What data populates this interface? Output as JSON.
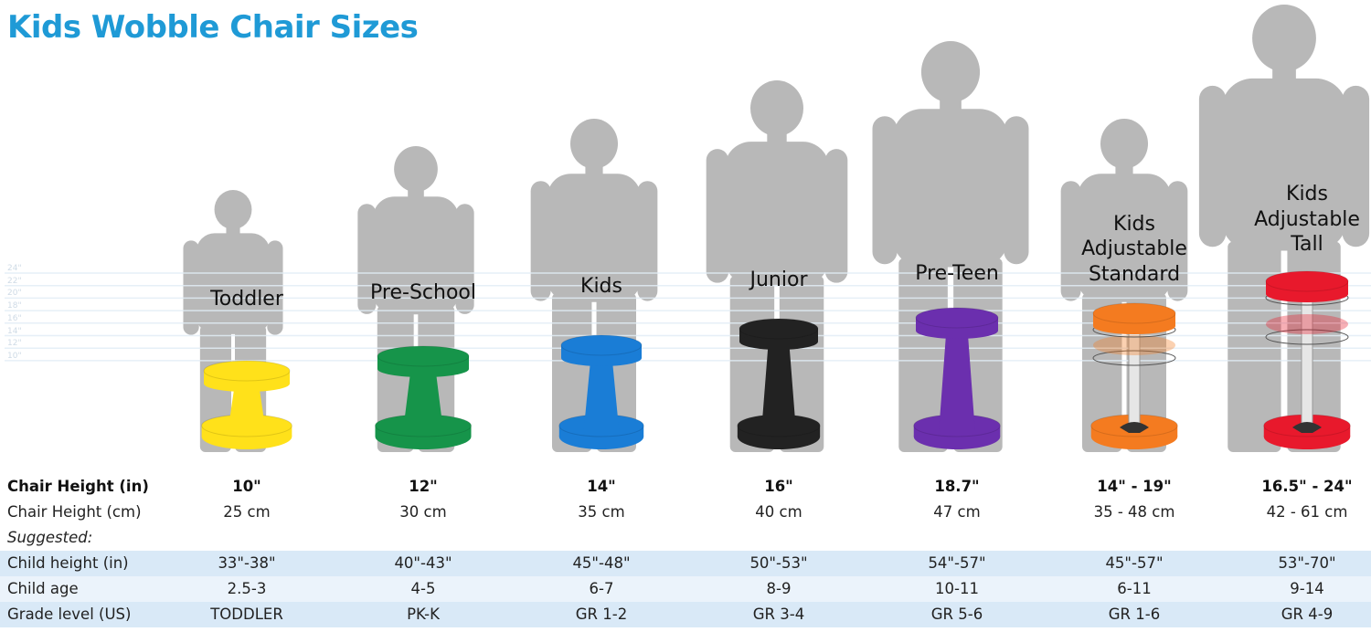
{
  "title": "Kids Wobble Chair Sizes",
  "guide_ticks": [
    "24\"",
    "22\"",
    "20\"",
    "18\"",
    "16\"",
    "14\"",
    "12\"",
    "10\""
  ],
  "models": [
    {
      "name_lines": [
        "Toddler"
      ],
      "color": "#ffe11a"
    },
    {
      "name_lines": [
        "Pre-School"
      ],
      "color": "#16944a"
    },
    {
      "name_lines": [
        "Kids"
      ],
      "color": "#1a7dd6"
    },
    {
      "name_lines": [
        "Junior"
      ],
      "color": "#222222"
    },
    {
      "name_lines": [
        "Pre-Teen"
      ],
      "color": "#6b2fae"
    },
    {
      "name_lines": [
        "Kids",
        "Adjustable",
        "Standard"
      ],
      "color": "#f47b20"
    },
    {
      "name_lines": [
        "Kids",
        "Adjustable",
        "Tall"
      ],
      "color": "#e8192c"
    }
  ],
  "table": {
    "rows": [
      {
        "label": "Chair Height (in)",
        "values": [
          "10\"",
          "12\"",
          "14\"",
          "16\"",
          "18.7\"",
          "14\" - 19\"",
          "16.5\" - 24\""
        ]
      },
      {
        "label": "Chair Height (cm)",
        "values": [
          "25 cm",
          "30 cm",
          "35 cm",
          "40 cm",
          "47 cm",
          "35 - 48 cm",
          "42 - 61 cm"
        ]
      },
      {
        "label": "Suggested:",
        "values": []
      },
      {
        "label": "Child height (in)",
        "values": [
          "33\"-38\"",
          "40\"-43\"",
          "45\"-48\"",
          "50\"-53\"",
          "54\"-57\"",
          "45\"-57\"",
          "53\"-70\""
        ]
      },
      {
        "label": "Child age",
        "values": [
          "2.5-3",
          "4-5",
          "6-7",
          "8-9",
          "10-11",
          "6-11",
          "9-14"
        ]
      },
      {
        "label": "Grade level (US)",
        "values": [
          "TODDLER",
          "PK-K",
          "GR 1-2",
          "GR 3-4",
          "GR 5-6",
          "GR 1-6",
          "GR 4-9"
        ]
      }
    ]
  },
  "colors": {
    "title": "#1f9ad6",
    "silhouette": "#b8b8b8",
    "row_highlight": "#d9e9f7",
    "row_light": "#ebf3fb"
  }
}
